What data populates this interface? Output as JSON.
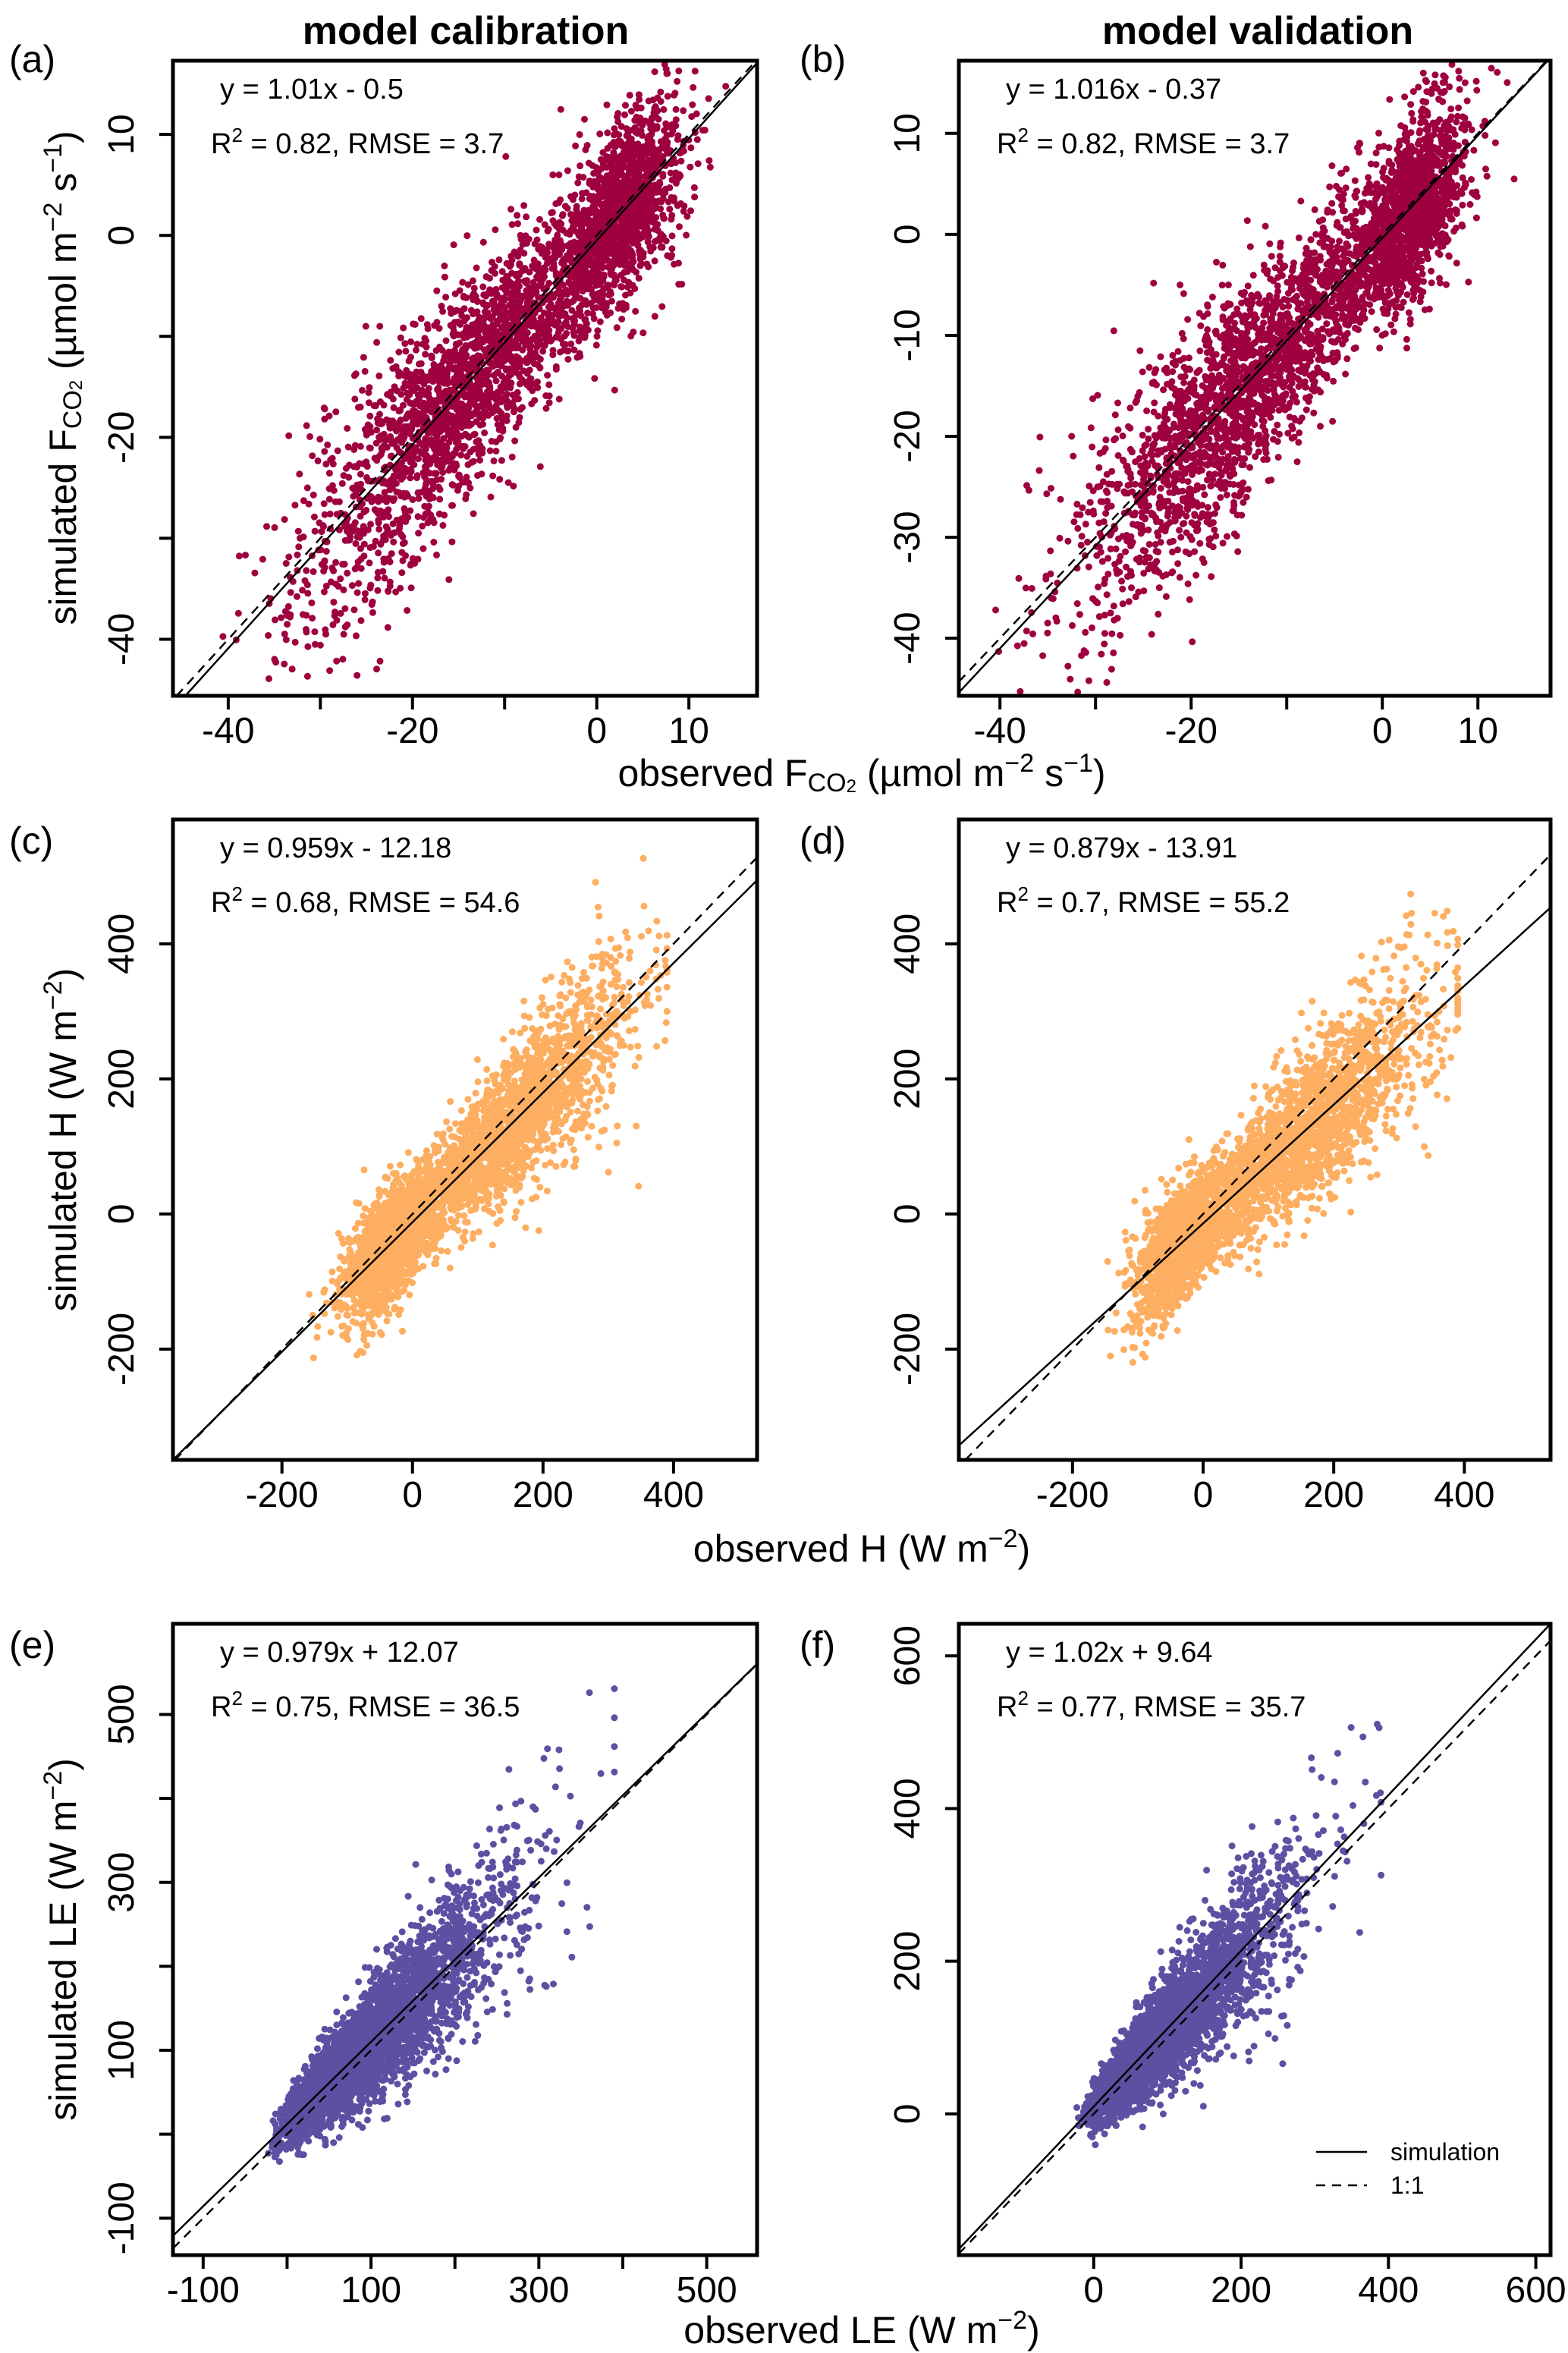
{
  "column_titles": [
    "model calibration",
    "model validation"
  ],
  "legend": {
    "location": "bottom-right of panel (f)",
    "entries": [
      {
        "label": "simulation",
        "style": "solid"
      },
      {
        "label": "1:1",
        "style": "dashed"
      }
    ]
  },
  "axis_labels": {
    "fco2_y": [
      {
        "t": "simulated F"
      },
      {
        "t": "CO",
        "s": "sub"
      },
      {
        "t": "2",
        "s": "subsub"
      },
      {
        "t": " (µmol m"
      },
      {
        "t": "−2",
        "s": "sup"
      },
      {
        "t": " s"
      },
      {
        "t": "−1",
        "s": "sup"
      },
      {
        "t": ")"
      }
    ],
    "fco2_x": [
      {
        "t": "observed F"
      },
      {
        "t": "CO",
        "s": "sub"
      },
      {
        "t": "2",
        "s": "subsub"
      },
      {
        "t": " (µmol m"
      },
      {
        "t": "−2",
        "s": "sup"
      },
      {
        "t": " s"
      },
      {
        "t": "−1",
        "s": "sup"
      },
      {
        "t": ")"
      }
    ],
    "h_y": [
      {
        "t": "simulated H (W m"
      },
      {
        "t": "−2",
        "s": "sup"
      },
      {
        "t": ")"
      }
    ],
    "h_x": [
      {
        "t": "observed H (W m"
      },
      {
        "t": "−2",
        "s": "sup"
      },
      {
        "t": ")"
      }
    ],
    "le_y": [
      {
        "t": "simulated LE (W m"
      },
      {
        "t": "−2",
        "s": "sup"
      },
      {
        "t": ")"
      }
    ],
    "le_x": [
      {
        "t": "observed LE (W m"
      },
      {
        "t": "−2",
        "s": "sup"
      },
      {
        "t": ")"
      }
    ]
  },
  "chart_data": [
    {
      "panel": "(a)",
      "type": "scatter",
      "variable": "FCO2",
      "column": "model calibration",
      "color": "#9e0040",
      "equation": "y = 1.01x - 0.5",
      "slope": 1.01,
      "intercept": -0.5,
      "r2": "0.82",
      "rmse": "3.7",
      "xlim": [
        -46,
        17.4
      ],
      "ylim": [
        -45.6,
        17.3
      ],
      "xticks": [
        -40,
        -30,
        -20,
        -10,
        0,
        10
      ],
      "xtick_labels": [
        "-40",
        "",
        "-20",
        "",
        "0",
        "10"
      ],
      "yticks": [
        -40,
        -30,
        -20,
        -10,
        0,
        10
      ],
      "ytick_labels": [
        "-40",
        "",
        "-20",
        "",
        "0",
        "10"
      ]
    },
    {
      "panel": "(b)",
      "type": "scatter",
      "variable": "FCO2",
      "column": "model validation",
      "color": "#9e0040",
      "equation": "y = 1.016x - 0.37",
      "slope": 1.016,
      "intercept": -0.37,
      "r2": "0.82",
      "rmse": "3.7",
      "xlim": [
        -44.3,
        17.6
      ],
      "ylim": [
        -45.7,
        17.2
      ],
      "xticks": [
        -40,
        -30,
        -20,
        -10,
        0,
        10
      ],
      "xtick_labels": [
        "-40",
        "",
        "-20",
        "",
        "0",
        "10"
      ],
      "yticks": [
        -40,
        -30,
        -20,
        -10,
        0,
        10
      ],
      "ytick_labels": [
        "-40",
        "-30",
        "-20",
        "-10",
        "0",
        "10"
      ]
    },
    {
      "panel": "(c)",
      "type": "scatter",
      "variable": "H",
      "column": "model calibration",
      "color": "#fdae61",
      "equation": "y = 0.959x - 12.18",
      "slope": 0.959,
      "intercept": -12.18,
      "r2": "0.68",
      "rmse": "54.6",
      "xlim": [
        -367,
        528
      ],
      "ylim": [
        -364,
        584
      ],
      "xticks": [
        -200,
        0,
        200,
        400
      ],
      "xtick_labels": [
        "-200",
        "0",
        "200",
        "400"
      ],
      "yticks": [
        -200,
        0,
        200,
        400
      ],
      "ytick_labels": [
        "-200",
        "0",
        "200",
        "400"
      ]
    },
    {
      "panel": "(d)",
      "type": "scatter",
      "variable": "H",
      "column": "model validation",
      "color": "#fdae61",
      "equation": "y = 0.879x - 13.91",
      "slope": 0.879,
      "intercept": -13.91,
      "r2": "0.7",
      "rmse": "55.2",
      "xlim": [
        -374,
        532
      ],
      "ylim": [
        -364,
        584
      ],
      "xticks": [
        -200,
        0,
        200,
        400
      ],
      "xtick_labels": [
        "-200",
        "0",
        "200",
        "400"
      ],
      "yticks": [
        -200,
        0,
        200,
        400
      ],
      "ytick_labels": [
        "-200",
        "0",
        "200",
        "400"
      ]
    },
    {
      "panel": "(e)",
      "type": "scatter",
      "variable": "LE",
      "column": "model calibration",
      "color": "#5e4fa2",
      "equation": "y = 0.979x + 12.07",
      "slope": 0.979,
      "intercept": 12.07,
      "r2": "0.75",
      "rmse": "36.5",
      "xlim": [
        -136,
        560
      ],
      "ylim": [
        -144,
        608
      ],
      "xticks": [
        -100,
        0,
        100,
        200,
        300,
        400,
        500
      ],
      "xtick_labels": [
        "-100",
        "",
        "100",
        "",
        "300",
        "",
        "500"
      ],
      "yticks": [
        -100,
        0,
        100,
        200,
        300,
        400,
        500
      ],
      "ytick_labels": [
        "-100",
        "",
        "100",
        "",
        "300",
        "",
        "500"
      ]
    },
    {
      "panel": "(f)",
      "type": "scatter",
      "variable": "LE",
      "column": "model validation",
      "color": "#5e4fa2",
      "equation": "y = 1.02x + 9.64",
      "slope": 1.02,
      "intercept": 9.64,
      "r2": "0.77",
      "rmse": "35.7",
      "xlim": [
        -183,
        620
      ],
      "ylim": [
        -185,
        642
      ],
      "xticks": [
        0,
        200,
        400,
        600
      ],
      "xtick_labels": [
        "0",
        "200",
        "400",
        "600"
      ],
      "yticks": [
        0,
        200,
        400,
        600
      ],
      "ytick_labels": [
        "0",
        "200",
        "400",
        "600"
      ]
    }
  ]
}
